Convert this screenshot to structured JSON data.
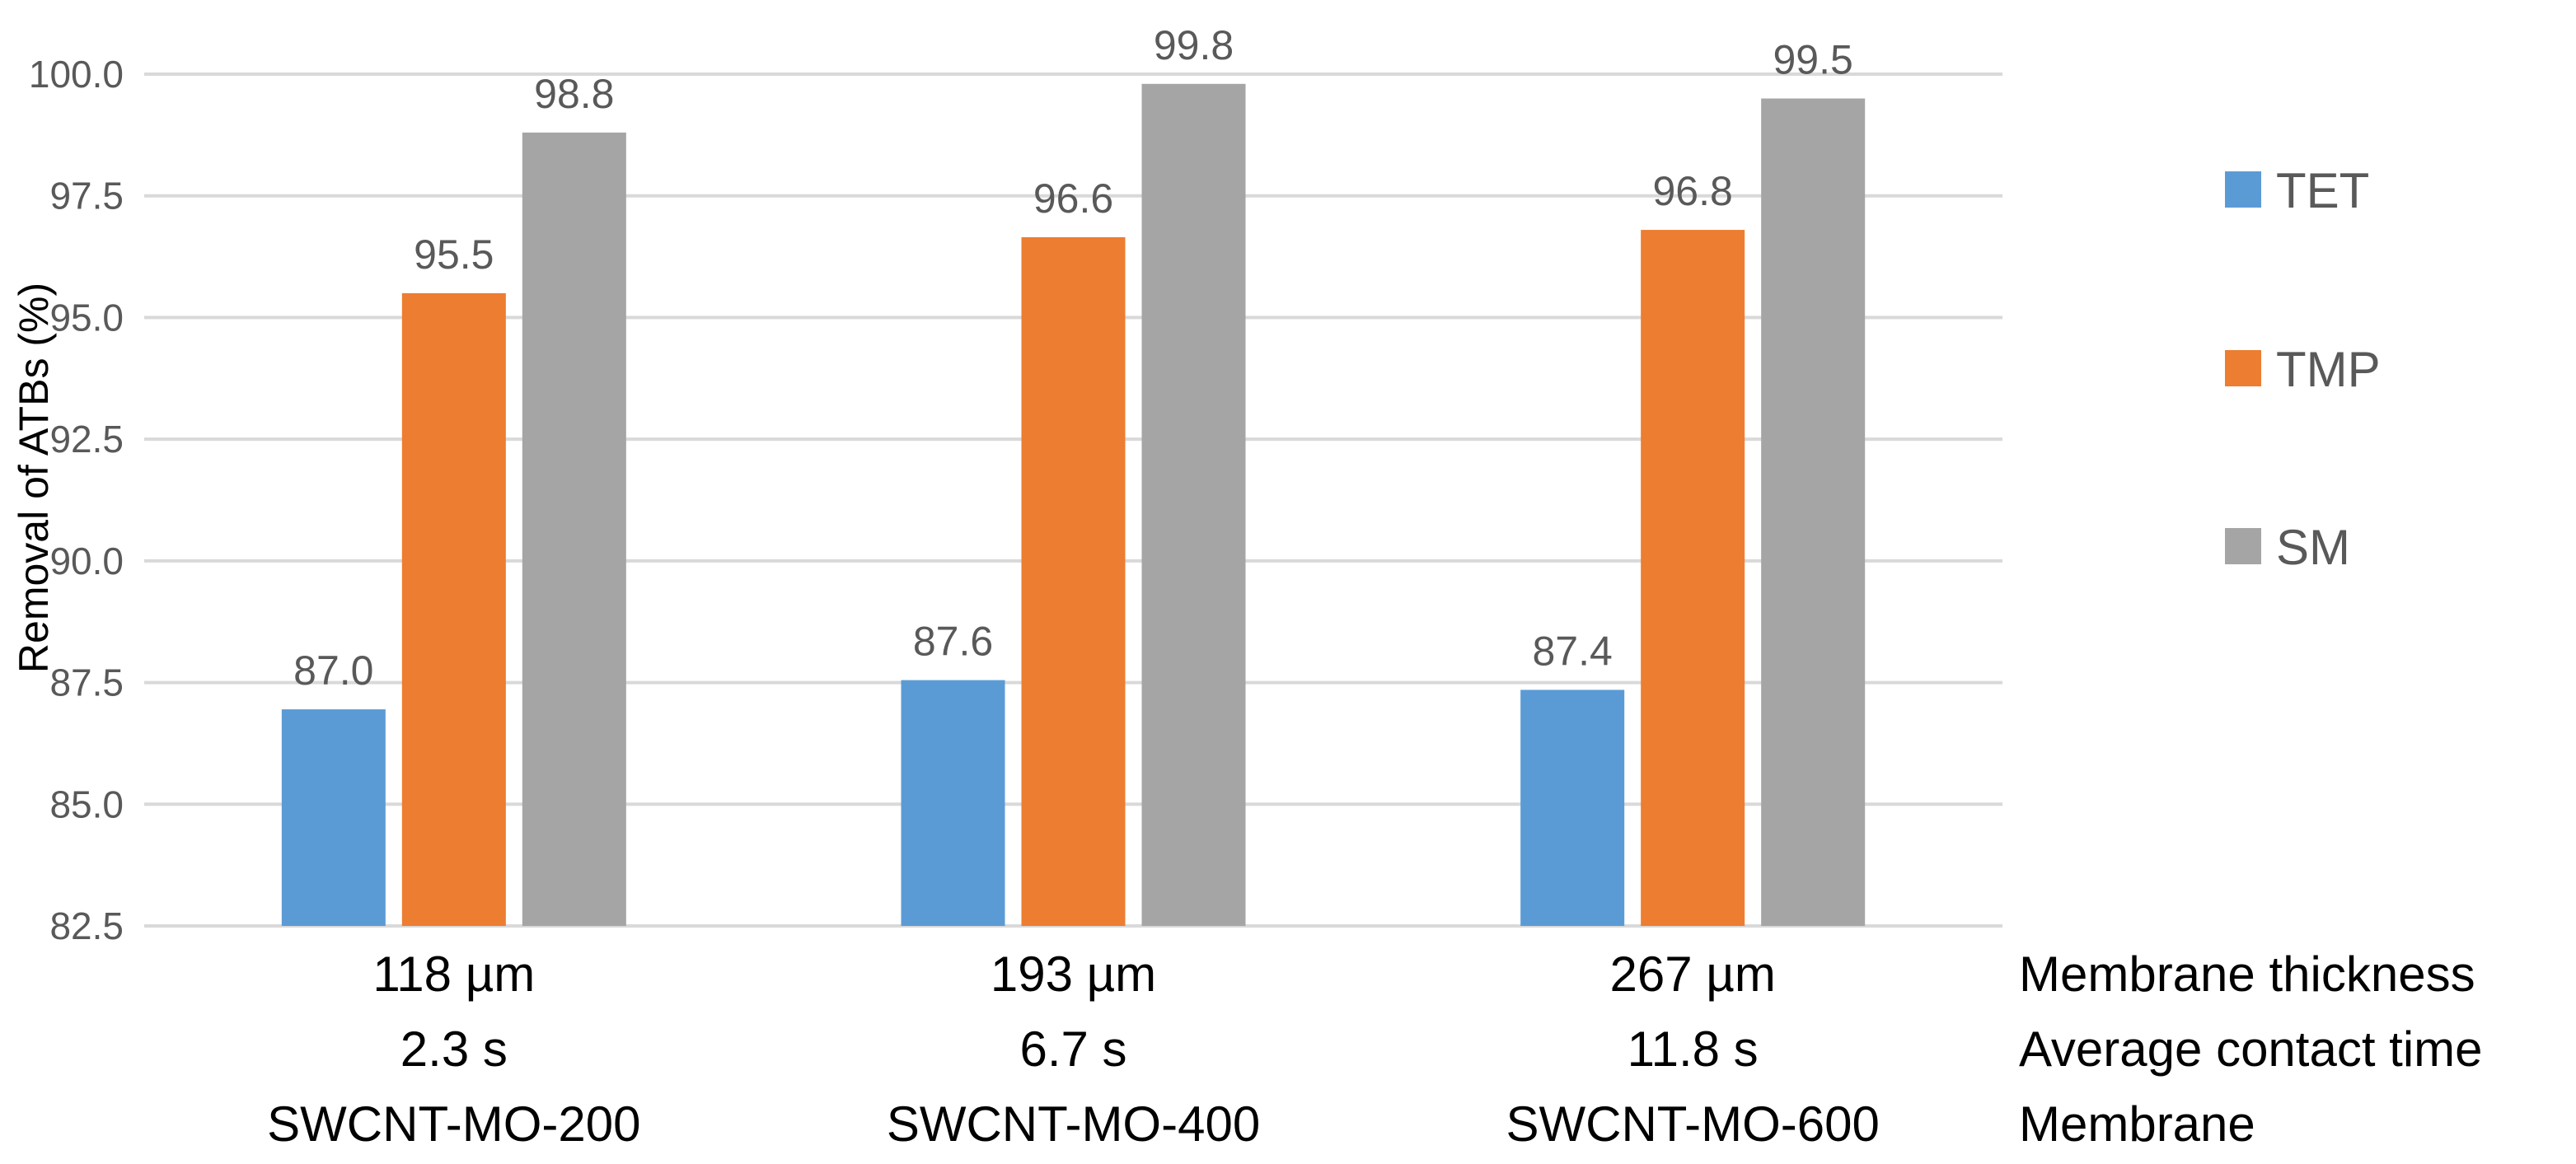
{
  "chart_data": {
    "type": "bar",
    "title": "",
    "ylabel": "Removal of ATBs (%)",
    "xlabel": "",
    "ylim": [
      82.5,
      100.0
    ],
    "yticks": [
      "82.5",
      "85.0",
      "87.5",
      "90.0",
      "92.5",
      "95.0",
      "97.5",
      "100.0"
    ],
    "ytick_values": [
      82.5,
      85.0,
      87.5,
      90.0,
      92.5,
      95.0,
      97.5,
      100.0
    ],
    "grid": true,
    "legend_position": "right",
    "categories": [
      {
        "thickness": "118 µm",
        "time": "2.3 s",
        "membrane": "SWCNT-MO-200"
      },
      {
        "thickness": "193 µm",
        "time": "6.7 s",
        "membrane": "SWCNT-MO-400"
      },
      {
        "thickness": "267 µm",
        "time": "11.8 s",
        "membrane": "SWCNT-MO-600"
      }
    ],
    "row_labels": [
      "Membrane thickness",
      "Average contact time",
      "Membrane"
    ],
    "series": [
      {
        "name": "TET",
        "color": "#5B9BD5",
        "values": [
          86.95,
          87.55,
          87.35
        ],
        "labels": [
          "87.0",
          "87.6",
          "87.4"
        ]
      },
      {
        "name": "TMP",
        "color": "#ED7D31",
        "values": [
          95.5,
          96.65,
          96.8
        ],
        "labels": [
          "95.5",
          "96.6",
          "96.8"
        ]
      },
      {
        "name": "SM",
        "color": "#A5A5A5",
        "values": [
          98.8,
          99.8,
          99.5
        ],
        "labels": [
          "98.8",
          "99.8",
          "99.5"
        ]
      }
    ]
  }
}
